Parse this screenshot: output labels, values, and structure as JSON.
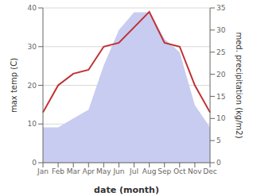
{
  "chart_data": {
    "type": "line",
    "categories": [
      "Jan",
      "Feb",
      "Mar",
      "Apr",
      "May",
      "Jun",
      "Jul",
      "Aug",
      "Sep",
      "Oct",
      "Nov",
      "Dec"
    ],
    "series": [
      {
        "type": "area",
        "axis": "y2",
        "color": "#c8ccf0",
        "values": [
          8,
          8,
          10,
          12,
          22,
          30,
          34,
          34,
          28,
          25,
          13,
          8
        ]
      },
      {
        "type": "line",
        "color": "#c03030",
        "values": [
          13,
          20,
          23,
          24,
          30,
          31,
          35,
          39,
          31,
          30,
          20,
          13
        ]
      }
    ],
    "xlabel": "date (month)",
    "ylabel": "max temp (C)",
    "y2label": "med. precipitation (kg/m2)",
    "ylim": [
      0,
      40
    ],
    "yticks": [
      0,
      10,
      20,
      30,
      40
    ],
    "y2lim": [
      0,
      35
    ],
    "y2ticks": [
      0,
      5,
      10,
      15,
      20,
      25,
      30,
      35
    ],
    "grid": true
  }
}
